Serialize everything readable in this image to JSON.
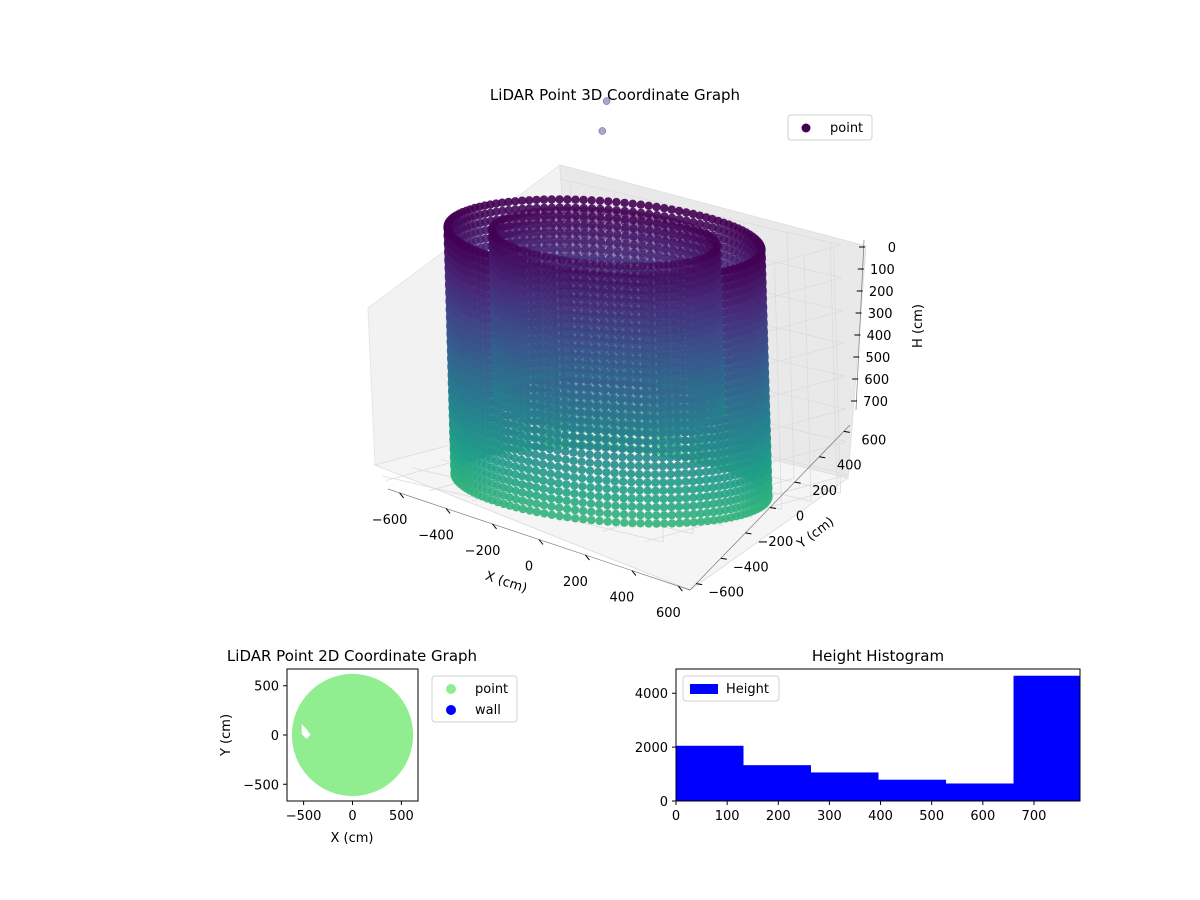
{
  "chart_data": [
    {
      "type": "scatter",
      "projection": "3d",
      "title": "LiDAR Point 3D Coordinate Graph",
      "xlabel": "X (cm)",
      "ylabel": "Y (cm)",
      "zlabel": "H (cm)",
      "xticks": [
        "−600",
        "−400",
        "−200",
        "0",
        "200",
        "400",
        "600"
      ],
      "yticks": [
        "−600",
        "−400",
        "−200",
        "0",
        "200",
        "400",
        "600"
      ],
      "zticks": [
        "0",
        "100",
        "200",
        "300",
        "400",
        "500",
        "600",
        "700"
      ],
      "xlim": [
        -650,
        650
      ],
      "ylim": [
        -650,
        650
      ],
      "zlim": [
        0,
        750
      ],
      "z_inverted": true,
      "legend": {
        "position": "top-right",
        "entries": [
          {
            "label": "point",
            "color": "#440154"
          }
        ]
      },
      "colormap": "viridis",
      "grid": true,
      "description_data": {
        "outer_radius": 600,
        "inner_radius": 430,
        "height_range": [
          0,
          750
        ],
        "outliers": [
          [
            -1050,
            -700,
            -180
          ],
          [
            -900,
            -620,
            -120
          ]
        ]
      }
    },
    {
      "type": "scatter",
      "title": "LiDAR Point 2D Coordinate Graph",
      "xlabel": "X (cm)",
      "ylabel": "Y (cm)",
      "xticks": [
        "−500",
        "0",
        "500"
      ],
      "yticks": [
        "500",
        "0",
        "−500"
      ],
      "xlim": [
        -670,
        670
      ],
      "ylim": [
        -670,
        670
      ],
      "legend": {
        "position": "outside-right",
        "entries": [
          {
            "label": "point",
            "color": "#90ee90"
          },
          {
            "label": "wall",
            "color": "#0000ff"
          }
        ]
      },
      "series": [
        {
          "name": "point",
          "color": "#90ee90",
          "shape": "disk",
          "radius": 620
        }
      ]
    },
    {
      "type": "bar",
      "subtype": "histogram",
      "title": "Height Histogram",
      "xticks": [
        "0",
        "100",
        "200",
        "300",
        "400",
        "500",
        "600",
        "700"
      ],
      "yticks": [
        "0",
        "2000",
        "4000"
      ],
      "xlim": [
        0,
        790
      ],
      "ylim": [
        0,
        4900
      ],
      "bin_edges": [
        0,
        132,
        264,
        396,
        528,
        660,
        790
      ],
      "values": [
        2050,
        1330,
        1060,
        790,
        650,
        4650
      ],
      "color": "#0000ff",
      "legend": {
        "position": "top-left",
        "entries": [
          {
            "label": "Height",
            "color": "#0000ff"
          }
        ]
      }
    }
  ]
}
